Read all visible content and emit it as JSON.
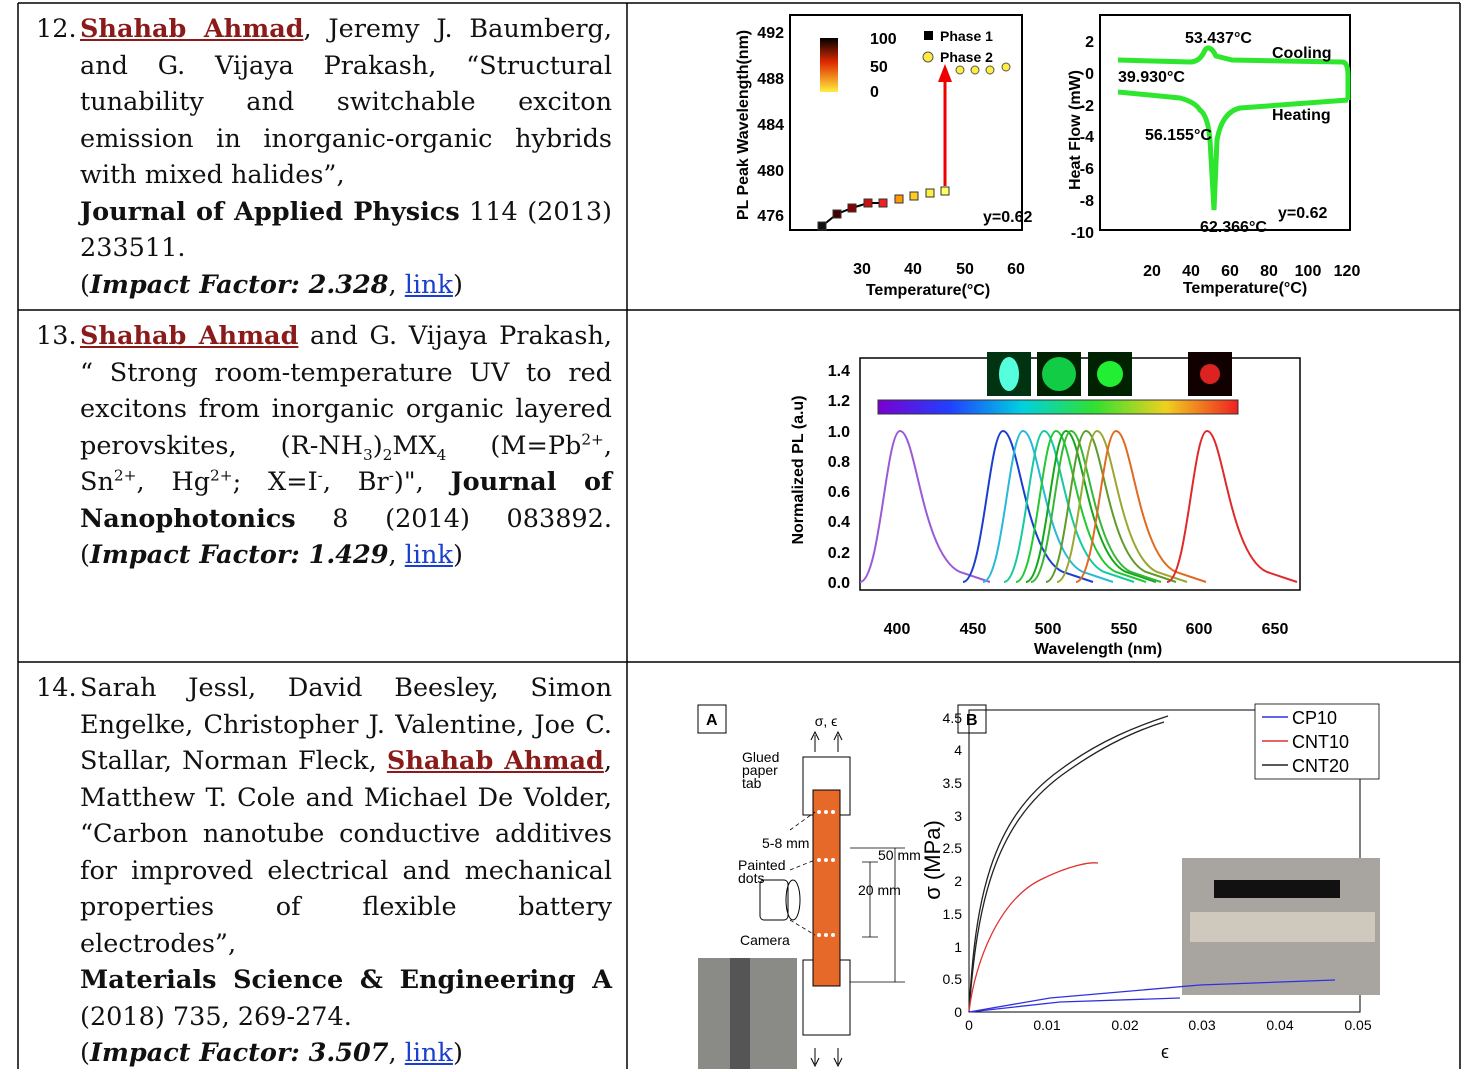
{
  "rows": [
    {
      "number": "12.",
      "paragraphs": [
        [
          {
            "text": "Shahab Ahmad",
            "style": "author"
          },
          {
            "text": ", Jeremy J. Baumberg, and G. Vijaya Prakash, “Structural tunability and switchable exciton emission in inorganic-organic hybrids with mixed halides”,",
            "style": "plain"
          }
        ],
        [
          {
            "text": "Journal of Applied Physics",
            "style": "bold"
          },
          {
            "text": " 114 (2013) 233511.",
            "style": "plain"
          }
        ],
        [
          {
            "text": "(",
            "style": "plain"
          },
          {
            "text": "Impact Factor: 2.328",
            "style": "impact"
          },
          {
            "text": ", ",
            "style": "plain"
          },
          {
            "text": "link",
            "style": "link"
          },
          {
            "text": ")",
            "style": "plain"
          }
        ]
      ],
      "figure": {
        "left": {
          "ylabel": "PL Peak Wavelength(nm)",
          "yticks": [
            "492",
            "488",
            "484",
            "480",
            "476"
          ],
          "xticks": [
            "30",
            "40",
            "50",
            "60"
          ],
          "xlabel": "Temperature(°C)",
          "colorbar": [
            "100",
            "50",
            "0"
          ],
          "legend": [
            "Phase 1",
            "Phase 2"
          ],
          "note": "y=0.62"
        },
        "right": {
          "ylabel": "Heat Flow (mW)",
          "yticks": [
            "2",
            "0",
            "-2",
            "-4",
            "-6",
            "-8",
            "-10"
          ],
          "xticks": [
            "20",
            "40",
            "60",
            "80",
            "100",
            "120"
          ],
          "xlabel": "Temperature(°C)",
          "annotations": [
            "53.437°C",
            "Cooling",
            "39.930°C",
            "Heating",
            "56.155°C",
            "62.366°C",
            "y=0.62"
          ]
        }
      }
    },
    {
      "number": "13.",
      "paragraphs": [
        [
          {
            "text": "Shahab Ahmad",
            "style": "author"
          },
          {
            "text": " and G. Vijaya Prakash, “ Strong room-temperature UV to red excitons from inorganic organic layered perovskites, (R-NH",
            "style": "plain"
          },
          {
            "text": "3",
            "style": "sub"
          },
          {
            "text": ")",
            "style": "plain"
          },
          {
            "text": "2",
            "style": "sub"
          },
          {
            "text": "MX",
            "style": "plain"
          },
          {
            "text": "4",
            "style": "sub"
          },
          {
            "text": " (M=Pb",
            "style": "plain"
          },
          {
            "text": "2+",
            "style": "sup"
          },
          {
            "text": ", Sn",
            "style": "plain"
          },
          {
            "text": "2+",
            "style": "sup"
          },
          {
            "text": ", Hg",
            "style": "plain"
          },
          {
            "text": "2+",
            "style": "sup"
          },
          {
            "text": "; X=I",
            "style": "plain"
          },
          {
            "text": "-",
            "style": "sup"
          },
          {
            "text": ", Br",
            "style": "plain"
          },
          {
            "text": "-",
            "style": "sup"
          },
          {
            "text": ")\", ",
            "style": "plain"
          },
          {
            "text": "Journal of Nanophotonics",
            "style": "bold"
          },
          {
            "text": " 8 (2014) 083892. (",
            "style": "plain"
          },
          {
            "text": "Impact Factor: 1.429",
            "style": "impact"
          },
          {
            "text": ", ",
            "style": "plain"
          },
          {
            "text": "link",
            "style": "link"
          },
          {
            "text": ")",
            "style": "plain"
          }
        ]
      ],
      "figure": {
        "ylabel": "Normalized PL (a.u)",
        "yticks": [
          "0.0",
          "0.2",
          "0.4",
          "0.6",
          "0.8",
          "1.0",
          "1.2",
          "1.4"
        ],
        "xticks": [
          "400",
          "450",
          "500",
          "550",
          "600",
          "650"
        ],
        "xlabel": "Wavelength (nm)"
      }
    },
    {
      "number": "14.",
      "paragraphs": [
        [
          {
            "text": "Sarah Jessl, David Beesley, Simon Engelke, Christopher J. Valentine, Joe C. Stallar, Norman Fleck, ",
            "style": "plain"
          },
          {
            "text": "Shahab Ahmad",
            "style": "author"
          },
          {
            "text": ", Matthew T. Cole and Michael De Volder, “Carbon nanotube conductive additives for improved electrical and mechanical properties of flexible battery electrodes”,",
            "style": "plain"
          }
        ],
        [
          {
            "text": "Materials Science & Engineering A",
            "style": "bold"
          },
          {
            "text": " (2018) 735, 269-274.",
            "style": "plain"
          }
        ],
        [
          {
            "text": "(",
            "style": "plain"
          },
          {
            "text": "Impact Factor: 3.507",
            "style": "impact"
          },
          {
            "text": ", ",
            "style": "plain"
          },
          {
            "text": "link",
            "style": "link"
          },
          {
            "text": ")",
            "style": "plain"
          }
        ]
      ],
      "figure": {
        "panel_a": {
          "label": "A",
          "arrows": "σ, ϵ",
          "tab": [
            "Glued",
            "paper",
            "tab"
          ],
          "gap": "5-8 mm",
          "dots": [
            "Painted",
            "dots"
          ],
          "camera": "Camera",
          "length": "50 mm",
          "gauge": "20 mm"
        },
        "panel_b": {
          "label": "B",
          "yticks": [
            "0",
            "0.5",
            "1",
            "1.5",
            "2",
            "2.5",
            "3",
            "3.5",
            "4",
            "4.5"
          ],
          "xticks": [
            "0",
            "0.01",
            "0.02",
            "0.03",
            "0.04",
            "0.05"
          ],
          "ylabel": "σ (MPa)",
          "xlabel": "ϵ",
          "legend": [
            {
              "name": "CP10",
              "color": "#3030e0"
            },
            {
              "name": "CNT10",
              "color": "#e03030"
            },
            {
              "name": "CNT20",
              "color": "#222222"
            }
          ]
        }
      }
    }
  ]
}
